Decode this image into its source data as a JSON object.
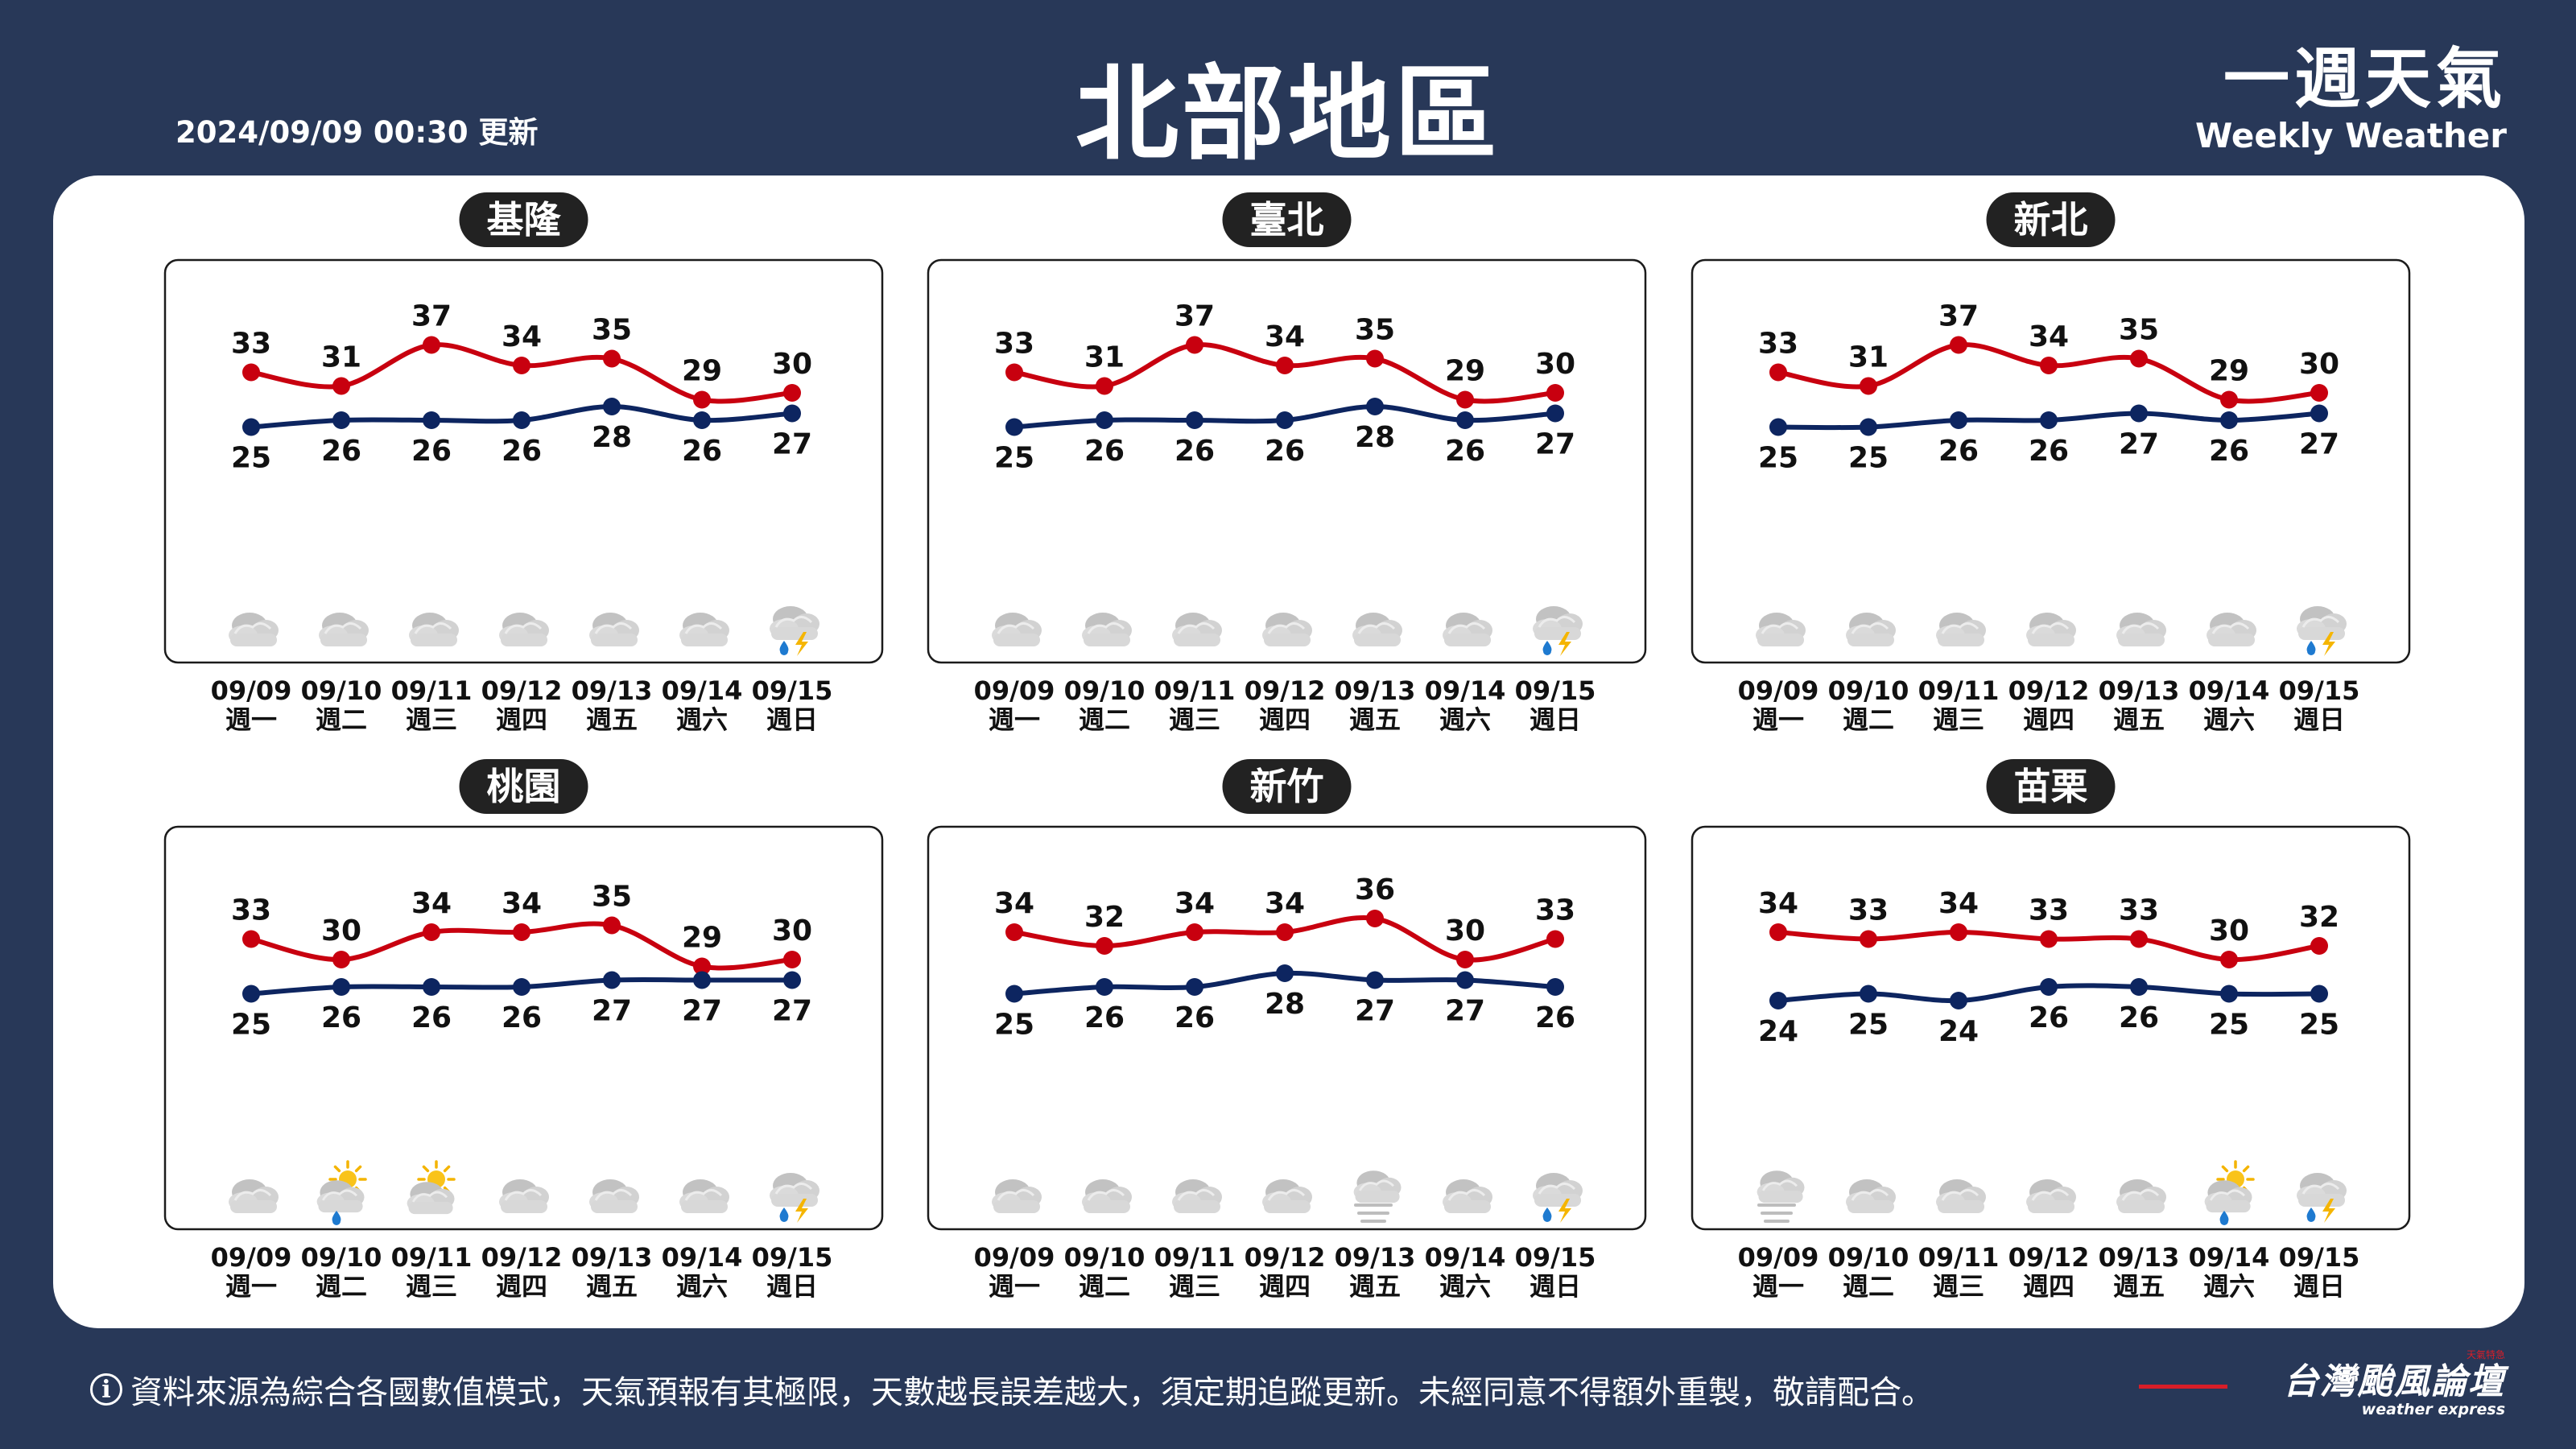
{
  "header": {
    "update_text": "2024/09/09 00:30 更新",
    "title": "北部地區",
    "logo_zh": "一週天氣",
    "logo_en": "Weekly Weather"
  },
  "footer": {
    "info_icon": "i",
    "disclaimer": "資料來源為綜合各國數值模式，天氣預報有其極限，天數越長誤差越大，須定期追蹤更新。未經同意不得額外重製，敬請配合。",
    "brand_zh": "台灣颱風論壇",
    "brand_en": "weather express",
    "brand_tag": "天氣特急"
  },
  "colors": {
    "background": "#283858",
    "high_line": "#c8000f",
    "low_line": "#0d2560",
    "label_bg": "#222222"
  },
  "chart_data": [
    {
      "type": "line",
      "title": "基隆",
      "categories": [
        "09/09",
        "09/10",
        "09/11",
        "09/12",
        "09/13",
        "09/14",
        "09/15"
      ],
      "weekdays": [
        "週一",
        "週二",
        "週三",
        "週四",
        "週五",
        "週六",
        "週日"
      ],
      "series": [
        {
          "values": [
            33,
            31,
            37,
            34,
            35,
            29,
            30
          ],
          "color": "#c8000f"
        },
        {
          "values": [
            25,
            26,
            26,
            26,
            28,
            26,
            27
          ],
          "color": "#0d2560"
        }
      ],
      "icons": [
        "cloudy-icon",
        "cloudy-icon",
        "cloudy-icon",
        "cloudy-icon",
        "cloudy-icon",
        "cloudy-icon",
        "thunderstorm-icon"
      ]
    },
    {
      "type": "line",
      "title": "臺北",
      "categories": [
        "09/09",
        "09/10",
        "09/11",
        "09/12",
        "09/13",
        "09/14",
        "09/15"
      ],
      "weekdays": [
        "週一",
        "週二",
        "週三",
        "週四",
        "週五",
        "週六",
        "週日"
      ],
      "series": [
        {
          "values": [
            33,
            31,
            37,
            34,
            35,
            29,
            30
          ],
          "color": "#c8000f"
        },
        {
          "values": [
            25,
            26,
            26,
            26,
            28,
            26,
            27
          ],
          "color": "#0d2560"
        }
      ],
      "icons": [
        "cloudy-icon",
        "cloudy-icon",
        "cloudy-icon",
        "cloudy-icon",
        "cloudy-icon",
        "cloudy-icon",
        "thunderstorm-icon"
      ]
    },
    {
      "type": "line",
      "title": "新北",
      "categories": [
        "09/09",
        "09/10",
        "09/11",
        "09/12",
        "09/13",
        "09/14",
        "09/15"
      ],
      "weekdays": [
        "週一",
        "週二",
        "週三",
        "週四",
        "週五",
        "週六",
        "週日"
      ],
      "series": [
        {
          "values": [
            33,
            31,
            37,
            34,
            35,
            29,
            30
          ],
          "color": "#c8000f"
        },
        {
          "values": [
            25,
            25,
            26,
            26,
            27,
            26,
            27
          ],
          "color": "#0d2560"
        }
      ],
      "icons": [
        "cloudy-icon",
        "cloudy-icon",
        "cloudy-icon",
        "cloudy-icon",
        "cloudy-icon",
        "cloudy-icon",
        "thunderstorm-icon"
      ]
    },
    {
      "type": "line",
      "title": "桃園",
      "categories": [
        "09/09",
        "09/10",
        "09/11",
        "09/12",
        "09/13",
        "09/14",
        "09/15"
      ],
      "weekdays": [
        "週一",
        "週二",
        "週三",
        "週四",
        "週五",
        "週六",
        "週日"
      ],
      "series": [
        {
          "values": [
            33,
            30,
            34,
            34,
            35,
            29,
            30
          ],
          "color": "#c8000f"
        },
        {
          "values": [
            25,
            26,
            26,
            26,
            27,
            27,
            27
          ],
          "color": "#0d2560"
        }
      ],
      "icons": [
        "cloudy-icon",
        "sun-rain-icon",
        "partly-cloudy-icon",
        "cloudy-icon",
        "cloudy-icon",
        "cloudy-icon",
        "thunderstorm-icon"
      ]
    },
    {
      "type": "line",
      "title": "新竹",
      "categories": [
        "09/09",
        "09/10",
        "09/11",
        "09/12",
        "09/13",
        "09/14",
        "09/15"
      ],
      "weekdays": [
        "週一",
        "週二",
        "週三",
        "週四",
        "週五",
        "週六",
        "週日"
      ],
      "series": [
        {
          "values": [
            34,
            32,
            34,
            34,
            36,
            30,
            33
          ],
          "color": "#c8000f"
        },
        {
          "values": [
            25,
            26,
            26,
            28,
            27,
            27,
            26
          ],
          "color": "#0d2560"
        }
      ],
      "icons": [
        "cloudy-icon",
        "cloudy-icon",
        "cloudy-icon",
        "cloudy-icon",
        "fog-icon",
        "cloudy-icon",
        "thunderstorm-icon"
      ]
    },
    {
      "type": "line",
      "title": "苗栗",
      "categories": [
        "09/09",
        "09/10",
        "09/11",
        "09/12",
        "09/13",
        "09/14",
        "09/15"
      ],
      "weekdays": [
        "週一",
        "週二",
        "週三",
        "週四",
        "週五",
        "週六",
        "週日"
      ],
      "series": [
        {
          "values": [
            34,
            33,
            34,
            33,
            33,
            30,
            32
          ],
          "color": "#c8000f"
        },
        {
          "values": [
            24,
            25,
            24,
            26,
            26,
            25,
            25
          ],
          "color": "#0d2560"
        }
      ],
      "icons": [
        "fog-icon",
        "cloudy-icon",
        "cloudy-icon",
        "cloudy-icon",
        "cloudy-icon",
        "sun-rain-icon",
        "thunderstorm-icon"
      ]
    }
  ]
}
